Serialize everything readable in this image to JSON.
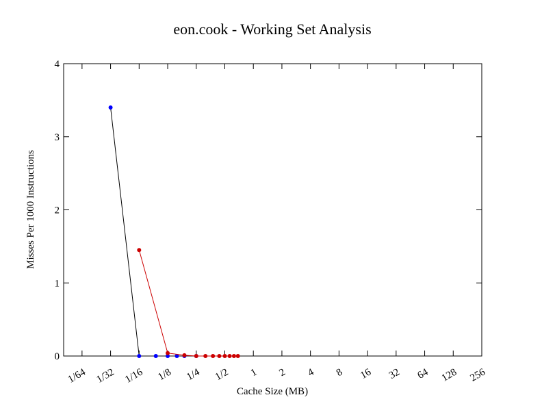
{
  "chart_data": {
    "type": "line",
    "title": "eon.cook - Working Set Analysis",
    "x_label": "Cache Size (MB)",
    "y_label": "Misses Per 1000 Instructions",
    "xscale": "log",
    "xlim": [
      0.01,
      256
    ],
    "ylim": [
      0,
      4
    ],
    "xticks": [
      {
        "value": 0.015625,
        "label": "1/64"
      },
      {
        "value": 0.03125,
        "label": "1/32"
      },
      {
        "value": 0.0625,
        "label": "1/16"
      },
      {
        "value": 0.125,
        "label": "1/8"
      },
      {
        "value": 0.25,
        "label": "1/4"
      },
      {
        "value": 0.5,
        "label": "1/2"
      },
      1,
      2,
      4,
      8,
      16,
      32,
      64,
      128,
      256
    ],
    "yticks": [
      0,
      1,
      2,
      3,
      4
    ],
    "series": [
      {
        "color": "#0000ff",
        "line_color": "#000000",
        "x": [
          0.03125,
          0.0625,
          0.09375,
          0.125,
          0.15625,
          0.1875,
          0.25
        ],
        "values": [
          3.4,
          0,
          0,
          0,
          0,
          0,
          0
        ]
      },
      {
        "color": "#cc0000",
        "line_color": "#cc0000",
        "x": [
          0.0625,
          0.125,
          0.1875,
          0.25,
          0.3125,
          0.375,
          0.4375,
          0.5,
          0.5625,
          0.625,
          0.6875
        ],
        "values": [
          1.45,
          0.04,
          0.01,
          0,
          0,
          0,
          0,
          0,
          0,
          0,
          0
        ]
      }
    ]
  }
}
